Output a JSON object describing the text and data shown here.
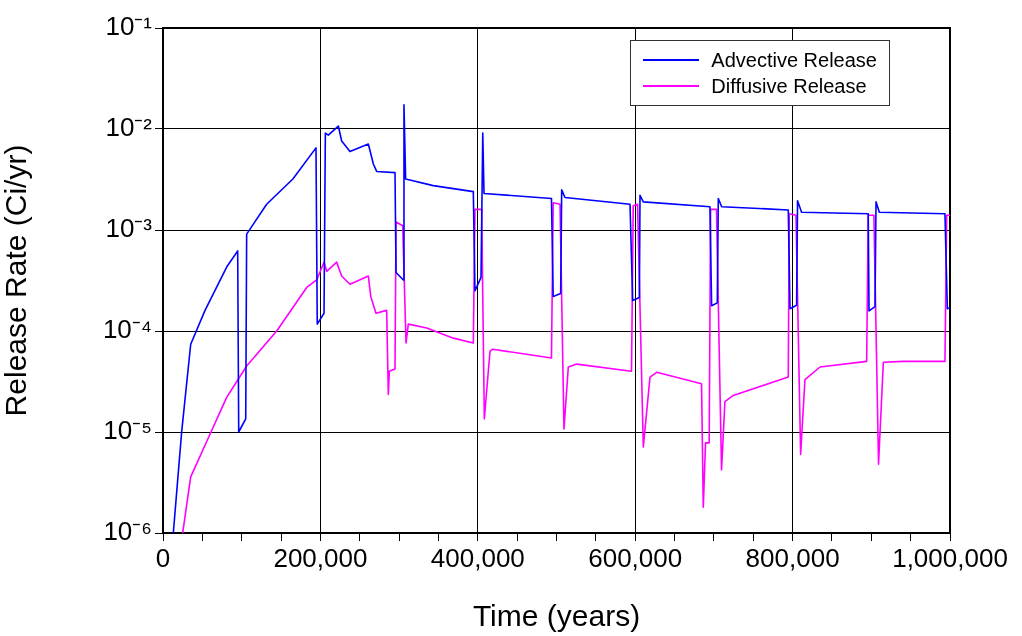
{
  "chart_data": {
    "type": "line",
    "xlabel": "Time (years)",
    "ylabel": "Release Rate (Ci/yr)",
    "log": "y",
    "grid": true,
    "legend": "top right",
    "marker": "none",
    "line_style": "solid",
    "xlim": [
      0,
      1000000
    ],
    "ylim": [
      1e-06,
      0.1
    ],
    "xticks": [
      {
        "value": 0,
        "label": "0"
      },
      {
        "value": 50000,
        "label": null
      },
      {
        "value": 100000,
        "label": null
      },
      {
        "value": 150000,
        "label": null
      },
      {
        "value": 200000,
        "label": "200,000"
      },
      {
        "value": 250000,
        "label": null
      },
      {
        "value": 300000,
        "label": null
      },
      {
        "value": 350000,
        "label": null
      },
      {
        "value": 400000,
        "label": "400,000"
      },
      {
        "value": 450000,
        "label": null
      },
      {
        "value": 500000,
        "label": null
      },
      {
        "value": 550000,
        "label": null
      },
      {
        "value": 600000,
        "label": "600,000"
      },
      {
        "value": 650000,
        "label": null
      },
      {
        "value": 700000,
        "label": null
      },
      {
        "value": 750000,
        "label": null
      },
      {
        "value": 800000,
        "label": "800,000"
      },
      {
        "value": 850000,
        "label": null
      },
      {
        "value": 900000,
        "label": null
      },
      {
        "value": 950000,
        "label": null
      },
      {
        "value": 1000000,
        "label": "1,000,000"
      }
    ],
    "yticks": [
      {
        "value": 1e-06,
        "label": "10⁻⁶"
      },
      {
        "value": 1e-05,
        "label": "10⁻⁵"
      },
      {
        "value": 0.0001,
        "label": "10⁻⁴"
      },
      {
        "value": 0.001,
        "label": "10⁻³"
      },
      {
        "value": 0.01,
        "label": "10⁻²"
      },
      {
        "value": 0.1,
        "label": "10⁻¹"
      }
    ],
    "series": [
      {
        "name": "Advective Release",
        "color": "#0000ff",
        "x": [
          13100,
          23700,
          35200,
          53400,
          80900,
          94900,
          96200,
          105100,
          106300,
          131700,
          165000,
          194400,
          196000,
          204600,
          206300,
          210000,
          222800,
          227000,
          237600,
          260900,
          267300,
          271500,
          294800,
          296100,
          305400,
          306200,
          308300,
          343400,
          394300,
          396400,
          404100,
          406300,
          407900,
          493600,
          495800,
          505300,
          506600,
          510800,
          593400,
          596800,
          605300,
          606100,
          610300,
          695000,
          697100,
          704300,
          705600,
          709900,
          794500,
          796700,
          805100,
          806300,
          811400,
          896100,
          897100,
          904700,
          906000,
          910200,
          993600,
          996600,
          1000000
        ],
        "values": [
          1e-06,
          1e-05,
          7.4e-05,
          0.00016,
          0.00043,
          0.00062,
          1e-05,
          1.35e-05,
          0.00091,
          0.0018,
          0.0032,
          0.0065,
          0.000117,
          0.00015,
          0.0091,
          0.0087,
          0.0107,
          0.0076,
          0.006,
          0.0071,
          0.0045,
          0.0038,
          0.0037,
          0.00038,
          0.00032,
          0.0174,
          0.0032,
          0.00275,
          0.0024,
          0.00025,
          0.00034,
          0.0091,
          0.0023,
          0.00205,
          0.00022,
          0.000235,
          0.0025,
          0.0021,
          0.0018,
          0.0002,
          0.000215,
          0.0022,
          0.0019,
          0.0017,
          0.000178,
          0.00019,
          0.00205,
          0.0017,
          0.00158,
          0.000166,
          0.00018,
          0.00195,
          0.0015,
          0.00145,
          0.000158,
          0.000174,
          0.0019,
          0.0015,
          0.00145,
          0.000166,
          0.00017
        ]
      },
      {
        "name": "Diffusive Release",
        "color": "#ff00ff",
        "x": [
          25000,
          35200,
          59700,
          80900,
          106300,
          144500,
          182600,
          195300,
          204600,
          208000,
          220700,
          227000,
          237600,
          260900,
          264000,
          270600,
          284200,
          286300,
          287600,
          294800,
          296100,
          304600,
          308800,
          311700,
          335100,
          369000,
          394300,
          396400,
          404900,
          408300,
          415500,
          418900,
          493600,
          495800,
          504500,
          509500,
          515000,
          525600,
          595300,
          597500,
          603000,
          610300,
          618800,
          627300,
          684300,
          686500,
          689400,
          694000,
          695800,
          703300,
          709700,
          714000,
          724500,
          794500,
          795700,
          804300,
          810200,
          815700,
          834800,
          894100,
          896100,
          903300,
          909200,
          915300,
          940700,
          993600,
          995800,
          1000000
        ],
        "values": [
          1e-06,
          3.6e-06,
          9.5e-06,
          2.2e-05,
          4.5e-05,
          0.0001,
          0.00027,
          0.00032,
          0.00048,
          0.00039,
          0.00048,
          0.00035,
          0.00029,
          0.00035,
          0.00022,
          0.00015,
          0.00016,
          2.35e-05,
          4e-05,
          4.2e-05,
          0.0012,
          0.0011,
          7.6e-05,
          0.000117,
          0.000107,
          8.5e-05,
          7.6e-05,
          0.0016,
          0.0016,
          1.35e-05,
          6.3e-05,
          6.6e-05,
          5.4e-05,
          0.00186,
          0.0018,
          1.07e-05,
          4.4e-05,
          4.7e-05,
          4e-05,
          0.00174,
          0.0018,
          7.1e-06,
          3.5e-05,
          3.9e-05,
          3e-05,
          1.8e-06,
          7.8e-06,
          7.8e-06,
          0.0016,
          0.0016,
          4.2e-06,
          2e-05,
          2.3e-05,
          3.5e-05,
          0.00145,
          0.0014,
          6e-06,
          3.3e-05,
          4.4e-05,
          5e-05,
          0.0014,
          0.0014,
          4.8e-06,
          4.9e-05,
          5e-05,
          5e-05,
          0.0014,
          0.0014
        ]
      }
    ]
  }
}
